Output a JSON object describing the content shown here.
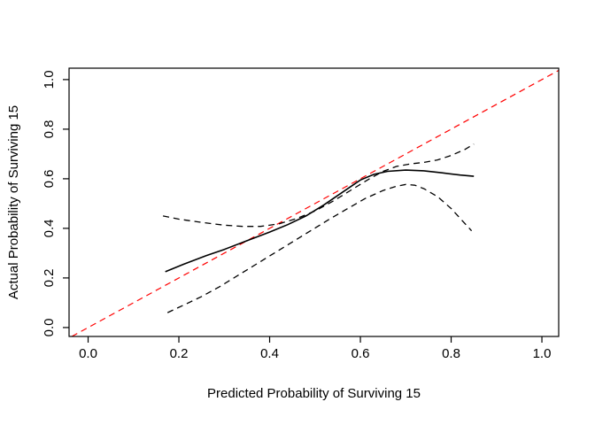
{
  "chart_data": {
    "type": "line",
    "title": "",
    "xlabel": "Predicted Probability of Surviving 15",
    "ylabel": "Actual Probability of Surviving 15",
    "xlim": [
      -0.042,
      1.037
    ],
    "ylim": [
      -0.036,
      1.046
    ],
    "x_ticks": [
      0.0,
      0.2,
      0.4,
      0.6,
      0.8,
      1.0
    ],
    "y_ticks": [
      0.0,
      0.2,
      0.4,
      0.6,
      0.8,
      1.0
    ],
    "grid": false,
    "legend": "none",
    "background_color": "#ffffff",
    "box_color": "#000000",
    "series": [
      {
        "name": "ideal-diagonal",
        "style": "dashed",
        "color": "#ff0000",
        "width": 1.2,
        "points": [
          [
            -0.036,
            -0.036
          ],
          [
            1.037,
            1.037
          ]
        ]
      },
      {
        "name": "calibration-curve",
        "style": "solid",
        "color": "#000000",
        "width": 1.6,
        "points": [
          [
            0.17,
            0.225
          ],
          [
            0.21,
            0.255
          ],
          [
            0.26,
            0.29
          ],
          [
            0.3,
            0.315
          ],
          [
            0.35,
            0.35
          ],
          [
            0.4,
            0.385
          ],
          [
            0.44,
            0.415
          ],
          [
            0.48,
            0.45
          ],
          [
            0.52,
            0.495
          ],
          [
            0.56,
            0.545
          ],
          [
            0.6,
            0.595
          ],
          [
            0.63,
            0.618
          ],
          [
            0.66,
            0.63
          ],
          [
            0.7,
            0.635
          ],
          [
            0.74,
            0.632
          ],
          [
            0.78,
            0.624
          ],
          [
            0.82,
            0.615
          ],
          [
            0.85,
            0.61
          ]
        ]
      },
      {
        "name": "upper-confidence-band",
        "style": "dashed",
        "color": "#000000",
        "width": 1.3,
        "points": [
          [
            0.165,
            0.45
          ],
          [
            0.2,
            0.437
          ],
          [
            0.25,
            0.424
          ],
          [
            0.3,
            0.413
          ],
          [
            0.34,
            0.408
          ],
          [
            0.38,
            0.408
          ],
          [
            0.42,
            0.418
          ],
          [
            0.46,
            0.44
          ],
          [
            0.5,
            0.47
          ],
          [
            0.54,
            0.51
          ],
          [
            0.58,
            0.555
          ],
          [
            0.62,
            0.6
          ],
          [
            0.65,
            0.63
          ],
          [
            0.68,
            0.65
          ],
          [
            0.71,
            0.66
          ],
          [
            0.74,
            0.666
          ],
          [
            0.77,
            0.676
          ],
          [
            0.8,
            0.694
          ],
          [
            0.83,
            0.718
          ],
          [
            0.85,
            0.74
          ]
        ]
      },
      {
        "name": "lower-confidence-band",
        "style": "dashed",
        "color": "#000000",
        "width": 1.3,
        "points": [
          [
            0.175,
            0.06
          ],
          [
            0.21,
            0.09
          ],
          [
            0.25,
            0.125
          ],
          [
            0.29,
            0.165
          ],
          [
            0.33,
            0.21
          ],
          [
            0.37,
            0.255
          ],
          [
            0.41,
            0.3
          ],
          [
            0.45,
            0.345
          ],
          [
            0.49,
            0.39
          ],
          [
            0.53,
            0.435
          ],
          [
            0.57,
            0.478
          ],
          [
            0.61,
            0.52
          ],
          [
            0.65,
            0.553
          ],
          [
            0.68,
            0.57
          ],
          [
            0.7,
            0.577
          ],
          [
            0.72,
            0.574
          ],
          [
            0.74,
            0.56
          ],
          [
            0.77,
            0.528
          ],
          [
            0.8,
            0.48
          ],
          [
            0.82,
            0.44
          ],
          [
            0.845,
            0.39
          ]
        ]
      }
    ]
  }
}
